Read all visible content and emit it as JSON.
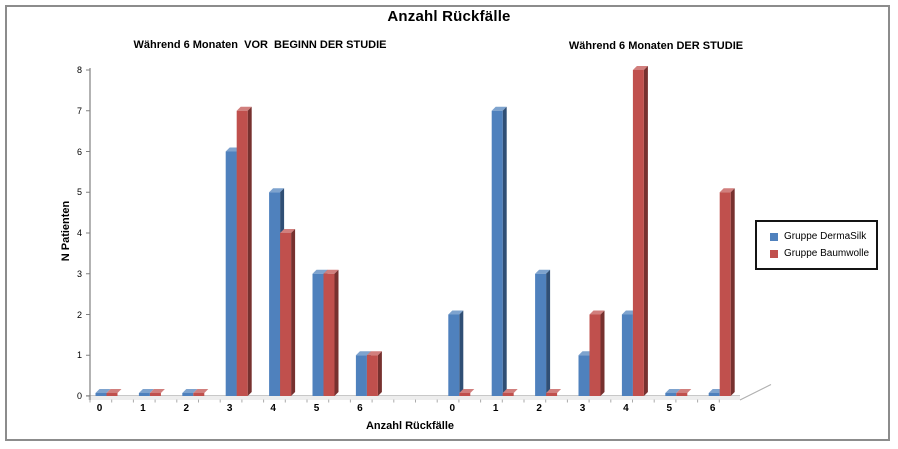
{
  "chart_data": {
    "type": "bar",
    "style": "3d-clustered-column",
    "title": "Anzahl Rückfälle",
    "xlabel": "Anzahl Rückfälle",
    "ylabel": "N Patienten",
    "ylim": [
      0,
      8
    ],
    "yticks": [
      0,
      1,
      2,
      3,
      4,
      5,
      6,
      7,
      8
    ],
    "grid": false,
    "legend_position": "right",
    "legend": [
      {
        "label": "Gruppe DermaSilk",
        "color": "#4F81BD"
      },
      {
        "label": "Gruppe Baumwolle",
        "color": "#C0504D"
      }
    ],
    "groups": [
      {
        "label": "Während 6 Monaten  VOR  BEGINN DER STUDIE",
        "categories": [
          "0",
          "1",
          "2",
          "3",
          "4",
          "5",
          "6"
        ],
        "series": [
          {
            "name": "Gruppe DermaSilk",
            "color": "#4F81BD",
            "values": [
              0,
              0,
              0,
              6,
              5,
              3,
              1
            ]
          },
          {
            "name": "Gruppe Baumwolle",
            "color": "#C0504D",
            "values": [
              0,
              0,
              0,
              7,
              4,
              3,
              1
            ]
          }
        ]
      },
      {
        "label": "Während 6 Monaten DER STUDIE",
        "categories": [
          "0",
          "1",
          "2",
          "3",
          "4",
          "5",
          "6"
        ],
        "series": [
          {
            "name": "Gruppe DermaSilk",
            "color": "#4F81BD",
            "values": [
              2,
              7,
              3,
              1,
              2,
              0,
              0
            ]
          },
          {
            "name": "Gruppe Baumwolle",
            "color": "#C0504D",
            "values": [
              0,
              0,
              0,
              2,
              8,
              0,
              5
            ]
          }
        ]
      }
    ]
  }
}
